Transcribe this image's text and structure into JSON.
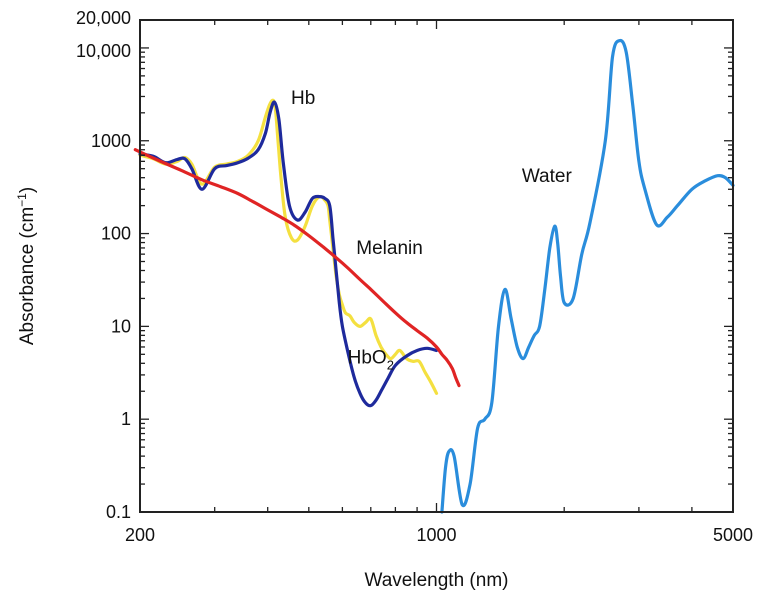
{
  "chart_data": {
    "type": "line",
    "title": "",
    "xlabel": "Wavelength (nm)",
    "ylabel": "Absorbance (cm",
    "ylabel_sup": "−1",
    "ylabel_close": ")",
    "xscale": "log",
    "yscale": "log",
    "xlim": [
      200,
      5000
    ],
    "ylim": [
      0.1,
      20000
    ],
    "x_ticks": [
      {
        "value": 200,
        "label": "200"
      },
      {
        "value": 1000,
        "label": "1000"
      },
      {
        "value": 5000,
        "label": "5000"
      }
    ],
    "y_ticks": [
      {
        "value": 0.1,
        "label": "0.1"
      },
      {
        "value": 1,
        "label": "1"
      },
      {
        "value": 10,
        "label": "10"
      },
      {
        "value": 100,
        "label": "100"
      },
      {
        "value": 1000,
        "label": "1000"
      },
      {
        "value": 10000,
        "label": "10,000"
      },
      {
        "value": 20000,
        "label": "20,000"
      }
    ],
    "grid": false,
    "series": [
      {
        "name": "Hb",
        "label_main": "Hb",
        "label_sub": "",
        "label_at": [
          485,
          2500
        ],
        "color": "#f4e040",
        "x": [
          200,
          215,
          230,
          245,
          255,
          265,
          280,
          300,
          320,
          340,
          360,
          380,
          395,
          405,
          413,
          418,
          423,
          430,
          440,
          455,
          470,
          490,
          510,
          530,
          545,
          555,
          560,
          570,
          580,
          590,
          600,
          610,
          625,
          640,
          660,
          680,
          700,
          720,
          740,
          760,
          780,
          800,
          820,
          850,
          880,
          910,
          940,
          970,
          1000
        ],
        "y": [
          700,
          640,
          560,
          600,
          660,
          560,
          340,
          520,
          560,
          600,
          700,
          1000,
          1800,
          2500,
          2700,
          2000,
          1000,
          400,
          150,
          90,
          85,
          120,
          200,
          250,
          230,
          200,
          140,
          70,
          35,
          22,
          17,
          14,
          13,
          11,
          10,
          11,
          12,
          8,
          6,
          5,
          4.5,
          5,
          5.5,
          4.5,
          4.2,
          4.2,
          3.2,
          2.5,
          1.9
        ]
      },
      {
        "name": "HbO2",
        "label_main": "HbO",
        "label_sub": "2",
        "label_at": [
          700,
          4.0
        ],
        "color": "#1e2a9c",
        "x": [
          200,
          215,
          230,
          245,
          255,
          265,
          280,
          300,
          320,
          340,
          360,
          380,
          395,
          405,
          415,
          425,
          435,
          450,
          470,
          490,
          510,
          530,
          545,
          560,
          570,
          580,
          590,
          600,
          620,
          640,
          660,
          680,
          700,
          720,
          740,
          770,
          800,
          850,
          900,
          950,
          1000
        ],
        "y": [
          720,
          680,
          580,
          630,
          640,
          500,
          300,
          500,
          540,
          580,
          650,
          800,
          1200,
          2000,
          2600,
          1700,
          600,
          200,
          140,
          170,
          240,
          250,
          240,
          200,
          90,
          40,
          18,
          10,
          5,
          2.8,
          1.9,
          1.5,
          1.4,
          1.6,
          2,
          2.8,
          3.8,
          4.8,
          5.5,
          5.8,
          5.5
        ]
      },
      {
        "name": "Melanin",
        "label_main": "Melanin",
        "label_sub": "",
        "label_at": [
          775,
          60
        ],
        "color": "#e02424",
        "x": [
          195,
          220,
          250,
          280,
          310,
          340,
          370,
          400,
          430,
          460,
          500,
          540,
          580,
          620,
          660,
          700,
          750,
          800,
          850,
          900,
          950,
          1000,
          1030,
          1060,
          1090,
          1110,
          1130
        ],
        "y": [
          800,
          620,
          480,
          380,
          320,
          270,
          220,
          180,
          150,
          125,
          95,
          72,
          55,
          42,
          32,
          25,
          18.5,
          14,
          11,
          9,
          7.5,
          6,
          5,
          4.3,
          3.5,
          2.8,
          2.3
        ]
      },
      {
        "name": "Water",
        "label_main": "Water",
        "label_sub": "",
        "label_at": [
          1820,
          360
        ],
        "color": "#2a8ddc",
        "x": [
          1030,
          1050,
          1070,
          1100,
          1150,
          1200,
          1250,
          1300,
          1350,
          1400,
          1450,
          1500,
          1550,
          1600,
          1650,
          1700,
          1750,
          1800,
          1850,
          1900,
          1930,
          1960,
          2000,
          2100,
          2200,
          2300,
          2500,
          2600,
          2700,
          2800,
          2900,
          3000,
          3100,
          3300,
          3500,
          3700,
          4000,
          4300,
          4600,
          4800,
          5000
        ],
        "y": [
          0.1,
          0.3,
          0.45,
          0.4,
          0.12,
          0.2,
          0.8,
          1.0,
          1.5,
          10,
          25,
          12,
          6,
          4.5,
          6,
          8,
          10,
          25,
          70,
          120,
          80,
          35,
          18,
          20,
          60,
          130,
          1000,
          8000,
          12000,
          9000,
          2500,
          600,
          300,
          125,
          150,
          200,
          300,
          370,
          420,
          400,
          330
        ]
      }
    ]
  }
}
